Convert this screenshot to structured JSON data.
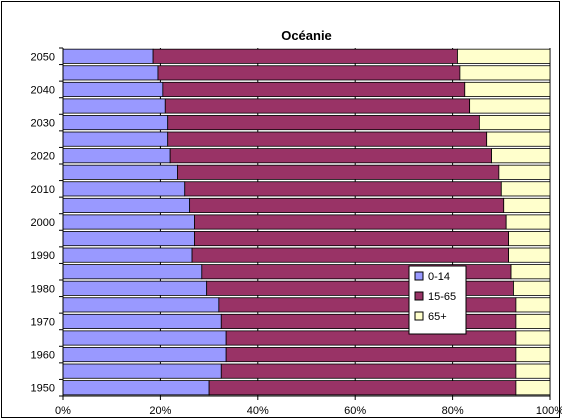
{
  "chart_data": {
    "type": "bar",
    "orientation": "horizontal",
    "stacked": "percent",
    "title": "Océanie",
    "xlabel": "",
    "ylabel": "",
    "xlim": [
      0,
      100
    ],
    "x_tick_labels": [
      "0%",
      "20%",
      "40%",
      "60%",
      "80%",
      "100%"
    ],
    "y_tick_labels": [
      "1950",
      "1960",
      "1970",
      "1980",
      "1990",
      "2000",
      "2010",
      "2020",
      "2030",
      "2040",
      "2050"
    ],
    "categories": [
      1950,
      1955,
      1960,
      1965,
      1970,
      1975,
      1980,
      1985,
      1990,
      1995,
      2000,
      2005,
      2010,
      2015,
      2020,
      2025,
      2030,
      2035,
      2040,
      2045,
      2050
    ],
    "series": [
      {
        "name": "0-14",
        "color": "#9999ff",
        "values": [
          30,
          32.5,
          33.5,
          33.5,
          32.5,
          32,
          29.5,
          28.5,
          26.5,
          27,
          27,
          26,
          25,
          23.5,
          22,
          21.5,
          21.5,
          21,
          20.5,
          19.5,
          18.5
        ]
      },
      {
        "name": "15-65",
        "color": "#993366",
        "values": [
          63,
          60.5,
          59.5,
          59.5,
          60.5,
          61,
          63,
          63.5,
          65,
          64.5,
          64,
          64.5,
          65,
          66,
          66,
          65.5,
          64,
          62.5,
          62,
          62,
          62.5
        ]
      },
      {
        "name": "65+",
        "color": "#ffffcc",
        "values": [
          7,
          7,
          7,
          7,
          7,
          7,
          7.5,
          8,
          8.5,
          8.5,
          9,
          9.5,
          10,
          10.5,
          12,
          13,
          14.5,
          16.5,
          17.5,
          18.5,
          19
        ]
      }
    ],
    "grid": "vertical",
    "legend_position": "right-inside"
  }
}
